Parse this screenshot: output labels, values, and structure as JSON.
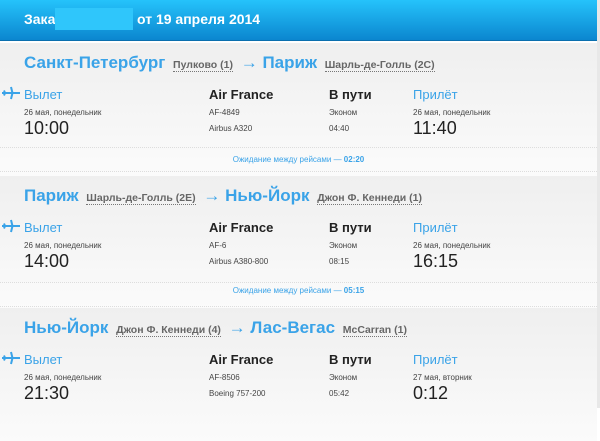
{
  "header": {
    "order_label": "Заказ",
    "date_label": "от 19 апреля 2014"
  },
  "segments": [
    {
      "from_city": "Санкт-Петербург",
      "from_airport": "Пулково (1)",
      "to_city": "Париж",
      "to_airport": "Шарль-де-Голль (2C)",
      "dep_label": "Вылет",
      "dep_date": "26 мая, понедельник",
      "dep_time": "10:00",
      "airline": "Air France",
      "flight": "AF-4849",
      "aircraft": "Airbus A320",
      "transit_label": "В пути",
      "class": "Эконом",
      "duration": "04:40",
      "arr_label": "Прилёт",
      "arr_date": "26 мая, понедельник",
      "arr_time": "11:40"
    },
    {
      "from_city": "Париж",
      "from_airport": "Шарль-де-Голль (2E)",
      "to_city": "Нью-Йорк",
      "to_airport": "Джон Ф. Кеннеди (1)",
      "dep_label": "Вылет",
      "dep_date": "26 мая, понедельник",
      "dep_time": "14:00",
      "airline": "Air France",
      "flight": "AF-6",
      "aircraft": "Airbus A380-800",
      "transit_label": "В пути",
      "class": "Эконом",
      "duration": "08:15",
      "arr_label": "Прилёт",
      "arr_date": "26 мая, понедельник",
      "arr_time": "16:15"
    },
    {
      "from_city": "Нью-Йорк",
      "from_airport": "Джон Ф. Кеннеди (4)",
      "to_city": "Лас-Вегас",
      "to_airport": "McCarran (1)",
      "dep_label": "Вылет",
      "dep_date": "26 мая, понедельник",
      "dep_time": "21:30",
      "airline": "Air France",
      "flight": "AF-8506",
      "aircraft": "Boeing 757-200",
      "transit_label": "В пути",
      "class": "Эконом",
      "duration": "05:42",
      "arr_label": "Прилёт",
      "arr_date": "27 мая, вторник",
      "arr_time": "0:12"
    }
  ],
  "layovers": [
    {
      "label": "Ожидание между рейсами —",
      "time": "02:20"
    },
    {
      "label": "Ожидание между рейсами —",
      "time": "05:15"
    }
  ],
  "arrow": "→",
  "colors": {
    "accent": "#3aa3e8",
    "header_top": "#25c3fb",
    "header_bottom": "#0b86cf"
  }
}
